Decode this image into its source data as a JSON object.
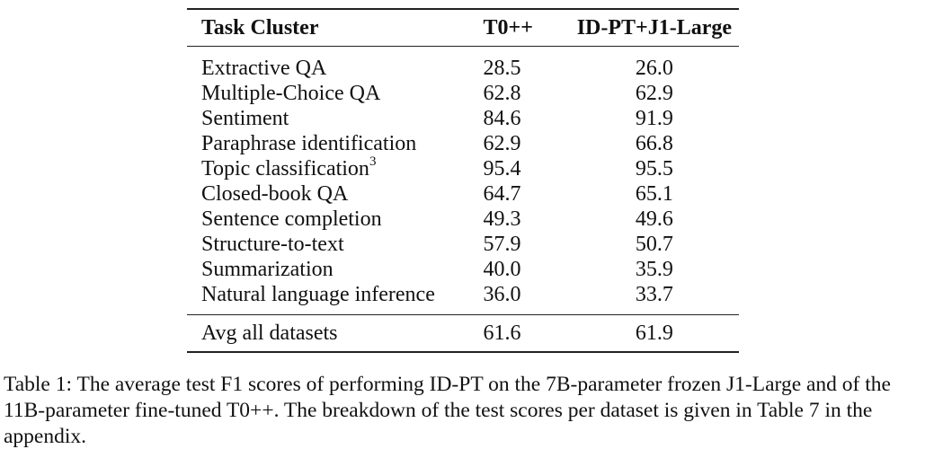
{
  "table": {
    "headers": [
      "Task Cluster",
      "T0++",
      "ID-PT+J1-Large"
    ],
    "rows": [
      {
        "task": "Extractive QA",
        "t0": "28.5",
        "idpt": "26.0"
      },
      {
        "task": "Multiple-Choice QA",
        "t0": "62.8",
        "idpt": "62.9"
      },
      {
        "task": "Sentiment",
        "t0": "84.6",
        "idpt": "91.9"
      },
      {
        "task": "Paraphrase identification",
        "t0": "62.9",
        "idpt": "66.8"
      },
      {
        "task": "Topic classification",
        "sup": "3",
        "t0": "95.4",
        "idpt": "95.5"
      },
      {
        "task": "Closed-book QA",
        "t0": "64.7",
        "idpt": "65.1"
      },
      {
        "task": "Sentence completion",
        "t0": "49.3",
        "idpt": "49.6"
      },
      {
        "task": "Structure-to-text",
        "t0": "57.9",
        "idpt": "50.7"
      },
      {
        "task": "Summarization",
        "t0": "40.0",
        "idpt": "35.9"
      },
      {
        "task": "Natural language inference",
        "t0": "36.0",
        "idpt": "33.7"
      }
    ],
    "average": {
      "task": "Avg all datasets",
      "t0": "61.6",
      "idpt": "61.9"
    }
  },
  "caption": "Table 1: The average test F1 scores of performing ID-PT on the 7B-parameter frozen J1-Large and of the 11B-parameter fine-tuned T0++. The breakdown of the test scores per dataset is given in Table 7 in the appendix."
}
